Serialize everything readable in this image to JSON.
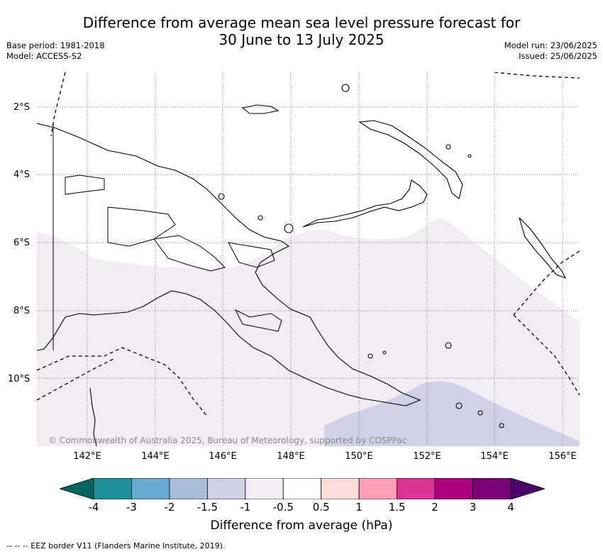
{
  "title": {
    "line1": "Difference from average mean sea level pressure forecast for",
    "line2": "30 June to 13 July 2025"
  },
  "info_left": {
    "base_period": "Base period: 1981-2018",
    "model": "Model: ACCESS-S2"
  },
  "info_right": {
    "model_run": "Model run: 23/06/2025",
    "issued": "Issued: 25/06/2025"
  },
  "map": {
    "lat_labels": [
      "2°S",
      "4°S",
      "6°S",
      "8°S",
      "10°S"
    ],
    "lon_labels": [
      "142°E",
      "144°E",
      "146°E",
      "148°E",
      "150°E",
      "152°E",
      "154°E",
      "156°E"
    ],
    "copyright": "© Commonwealth of Australia 2025, Bureau of Meteorology, supported by COSPPac",
    "shaded_classes": [
      {
        "range": "-1 to -0.5",
        "color": "#f3ecf5",
        "region": "south and south-east of Papua New Guinea"
      },
      {
        "range": "-1.5 to -1",
        "color": "#d0d1e6",
        "region": "south-east corner near 150°E–156°E, 10°S–12°S"
      }
    ]
  },
  "colorbar": {
    "title": "Difference from average (hPa)",
    "ticks": [
      "-4",
      "-3",
      "-2",
      "-1.5",
      "-1",
      "-0.5",
      "0.5",
      "1",
      "1.5",
      "2",
      "3",
      "4"
    ],
    "colors": [
      "#01665e",
      "#1c9099",
      "#67a9cf",
      "#a6bddb",
      "#d0d1e6",
      "#f3ecf5",
      "#ffffff",
      "#fddbd9",
      "#fa9fb5",
      "#dd3497",
      "#ae017e",
      "#7a0177",
      "#49006a"
    ]
  },
  "footer": "-- -- -- EEZ border V11 (Flanders Marine Institute, 2019)."
}
